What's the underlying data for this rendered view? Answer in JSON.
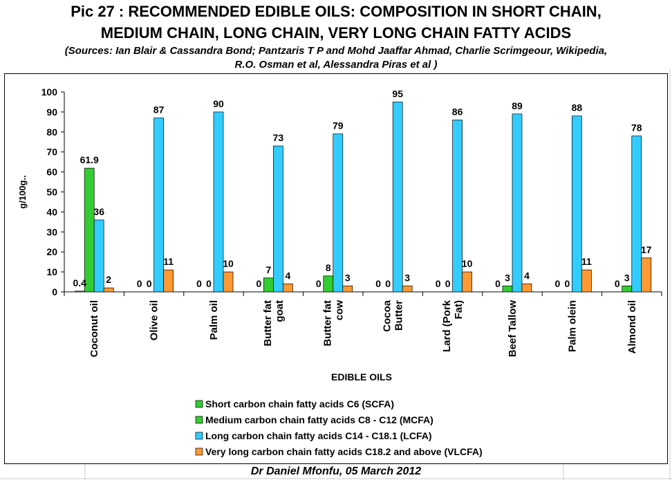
{
  "title_line1": "Pic 27 : RECOMMENDED EDIBLE OILS: COMPOSITION IN SHORT CHAIN,",
  "title_line2": "MEDIUM CHAIN, LONG CHAIN, VERY LONG CHAIN FATTY ACIDS",
  "sources_line1": "(Sources: Ian Blair & Cassandra Bond; Pantzaris T P and Mohd Jaaffar Ahmad, Charlie Scrimgeour, Wikipedia,",
  "sources_line2": "R.O. Osman et al, Alessandra Piras et al  )",
  "footer": "Dr Daniel Mfonfu,  05 March 2012",
  "chart_data": {
    "type": "bar",
    "xlabel": "EDIBLE OILS",
    "ylabel": "g/100g..",
    "ylim": [
      0,
      100
    ],
    "yticks": [
      0,
      10,
      20,
      30,
      40,
      50,
      60,
      70,
      80,
      90,
      100
    ],
    "grid": false,
    "legend_position": "bottom",
    "categories": [
      [
        "Coconut oil"
      ],
      [
        "Olive oil"
      ],
      [
        "Palm oil"
      ],
      [
        "Butter fat",
        "goat"
      ],
      [
        "Butter fat",
        "cow"
      ],
      [
        "Cocoa",
        "Butter"
      ],
      [
        "Lard (Pork",
        "Fat)"
      ],
      [
        "Beef Tallow"
      ],
      [
        "Palm olein"
      ],
      [
        "Almond oil"
      ]
    ],
    "series": [
      {
        "name": "Short carbon chain fatty acids C6 (SCFA)",
        "color": "#33cc33",
        "values": [
          0.4,
          0,
          0,
          0,
          0,
          0,
          0,
          0,
          0,
          0
        ],
        "labels": [
          "0.4",
          "0",
          "0",
          "0",
          "0",
          "0",
          "0",
          "0",
          "0",
          "0"
        ]
      },
      {
        "name": "Medium carbon chain fatty acids C8 - C12    (MCFA)",
        "color": "#33cc33",
        "values": [
          61.9,
          0,
          0,
          7,
          8,
          0,
          0,
          3,
          0,
          3
        ],
        "labels": [
          "61.9",
          "0",
          "0",
          "7",
          "8",
          "0",
          "0",
          "3",
          "0",
          "3"
        ]
      },
      {
        "name": "Long carbon chain  fatty acids C14 - C18.1 (LCFA)",
        "color": "#33ccff",
        "values": [
          36,
          87,
          90,
          73,
          79,
          95,
          86,
          89,
          88,
          78
        ],
        "labels": [
          "36",
          "87",
          "90",
          "73",
          "79",
          "95",
          "86",
          "89",
          "88",
          "78"
        ]
      },
      {
        "name": "Very long carbon chain fatty acids C18.2 and above (VLCFA)",
        "color": "#ff9933",
        "values": [
          2,
          11,
          10,
          4,
          3,
          3,
          10,
          4,
          11,
          17
        ],
        "labels": [
          "2",
          "11",
          "10",
          "4",
          "3",
          "3",
          "10",
          "4",
          "11",
          "17"
        ]
      }
    ]
  }
}
